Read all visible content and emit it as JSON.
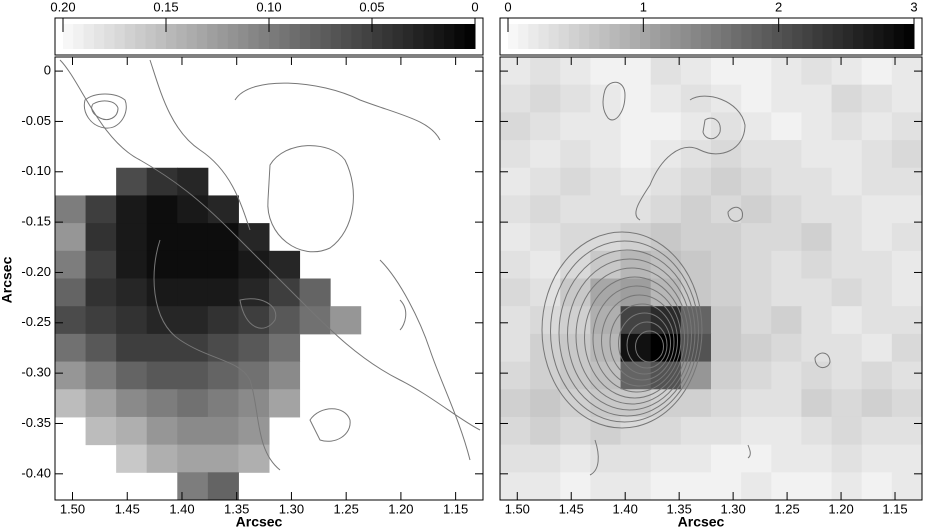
{
  "chart_data": [
    {
      "type": "heatmap",
      "xlabel": "Arcsec",
      "ylabel": "Arcsec",
      "xlim": [
        1.516,
        1.125
      ],
      "ylim": [
        -0.426,
        0.014
      ],
      "xticks": [
        {
          "value": 1.5,
          "label": "1.50"
        },
        1.45,
        {
          "value": 1.4,
          "label": "1.40"
        },
        1.35,
        {
          "value": 1.3,
          "label": "1.30"
        },
        1.25,
        {
          "value": 1.2,
          "label": "1.20"
        },
        1.15
      ],
      "yticks": [
        0,
        -0.05,
        {
          "value": -0.1,
          "label": "-0.10"
        },
        -0.15,
        {
          "value": -0.2,
          "label": "-0.20"
        },
        -0.25,
        {
          "value": -0.3,
          "label": "-0.30"
        },
        -0.35,
        {
          "value": -0.4,
          "label": "-0.40"
        }
      ],
      "show_ytick_labels": true,
      "clim": [
        0.2,
        0
      ],
      "cticks": [
        {
          "value": 0.2,
          "label": "0.20"
        },
        0.15,
        {
          "value": 0.1,
          "label": "0.10"
        },
        0.05,
        0
      ],
      "z": [
        [
          null,
          null,
          null,
          null,
          null,
          null,
          null,
          null,
          null,
          null,
          null,
          null,
          null,
          null
        ],
        [
          null,
          null,
          null,
          null,
          null,
          null,
          null,
          null,
          null,
          null,
          null,
          null,
          null,
          null
        ],
        [
          null,
          null,
          null,
          null,
          null,
          null,
          null,
          null,
          null,
          null,
          null,
          null,
          null,
          null
        ],
        [
          null,
          null,
          null,
          null,
          null,
          null,
          null,
          null,
          null,
          null,
          null,
          null,
          null,
          null
        ],
        [
          null,
          null,
          0.06,
          0.04,
          0.03,
          null,
          null,
          null,
          null,
          null,
          null,
          null,
          null,
          null
        ],
        [
          0.1,
          0.05,
          0.02,
          0.01,
          0.02,
          0.03,
          null,
          null,
          null,
          null,
          null,
          null,
          null,
          null
        ],
        [
          0.12,
          0.04,
          0.02,
          0.01,
          0.01,
          0.01,
          0.03,
          null,
          null,
          null,
          null,
          null,
          null,
          null
        ],
        [
          0.1,
          0.05,
          0.02,
          0.01,
          0.01,
          0.01,
          0.02,
          0.03,
          null,
          null,
          null,
          null,
          null,
          null
        ],
        [
          0.08,
          0.04,
          0.03,
          0.02,
          0.02,
          0.02,
          0.03,
          0.05,
          0.08,
          null,
          null,
          null,
          null,
          null
        ],
        [
          0.06,
          0.05,
          0.04,
          0.03,
          0.03,
          0.04,
          0.05,
          0.07,
          0.09,
          0.12,
          null,
          null,
          null,
          null
        ],
        [
          0.09,
          0.07,
          0.05,
          0.05,
          0.05,
          0.06,
          0.07,
          0.09,
          null,
          null,
          null,
          null,
          null,
          null
        ],
        [
          0.12,
          0.1,
          0.08,
          0.07,
          0.07,
          0.08,
          0.09,
          0.11,
          null,
          null,
          null,
          null,
          null,
          null
        ],
        [
          0.15,
          0.13,
          0.11,
          0.1,
          0.09,
          0.1,
          0.11,
          0.13,
          null,
          null,
          null,
          null,
          null,
          null
        ],
        [
          null,
          0.15,
          0.14,
          0.12,
          0.11,
          0.11,
          0.12,
          null,
          null,
          null,
          null,
          null,
          null,
          null
        ],
        [
          null,
          null,
          0.16,
          0.14,
          0.13,
          0.13,
          0.14,
          null,
          null,
          null,
          null,
          null,
          null,
          null
        ],
        [
          null,
          null,
          null,
          null,
          0.1,
          0.08,
          null,
          null,
          null,
          null,
          null,
          null,
          null,
          null
        ]
      ]
    },
    {
      "type": "heatmap",
      "xlabel": "Arcsec",
      "xlim": [
        1.516,
        1.125
      ],
      "ylim": [
        -0.426,
        0.014
      ],
      "xticks": [
        {
          "value": 1.5,
          "label": "1.50"
        },
        1.45,
        {
          "value": 1.4,
          "label": "1.40"
        },
        1.35,
        {
          "value": 1.3,
          "label": "1.30"
        },
        1.25,
        {
          "value": 1.2,
          "label": "1.20"
        },
        1.15
      ],
      "yticks": [
        0,
        -0.05,
        -0.1,
        -0.15,
        -0.2,
        -0.25,
        -0.3,
        -0.35,
        -0.4
      ],
      "show_ytick_labels": false,
      "clim": [
        0,
        3
      ],
      "cticks": [
        0,
        1,
        2,
        3
      ],
      "z": [
        [
          0.2,
          0.3,
          0.2,
          0.1,
          0.1,
          0.3,
          0.2,
          0.1,
          0.1,
          0.2,
          0.3,
          0.2,
          0.1,
          0.2
        ],
        [
          0.3,
          0.4,
          0.3,
          0.2,
          0.1,
          0.2,
          0.3,
          0.2,
          0.1,
          0.2,
          0.2,
          0.4,
          0.3,
          0.2
        ],
        [
          0.4,
          0.3,
          0.2,
          0.2,
          0.1,
          0.1,
          0.2,
          0.3,
          0.2,
          0.1,
          0.2,
          0.3,
          0.2,
          0.3
        ],
        [
          0.3,
          0.2,
          0.3,
          0.2,
          0.1,
          0.2,
          0.3,
          0.4,
          0.3,
          0.3,
          0.2,
          0.2,
          0.3,
          0.4
        ],
        [
          0.2,
          0.3,
          0.4,
          0.3,
          0.2,
          0.3,
          0.4,
          0.5,
          0.4,
          0.3,
          0.3,
          0.2,
          0.3,
          0.3
        ],
        [
          0.3,
          0.4,
          0.3,
          0.3,
          0.3,
          0.4,
          0.5,
          0.4,
          0.5,
          0.4,
          0.3,
          0.3,
          0.2,
          0.2
        ],
        [
          0.2,
          0.3,
          0.4,
          0.4,
          0.5,
          0.6,
          0.5,
          0.5,
          0.4,
          0.4,
          0.5,
          0.3,
          0.2,
          0.3
        ],
        [
          0.3,
          0.2,
          0.4,
          0.6,
          0.8,
          0.7,
          0.6,
          0.5,
          0.4,
          0.3,
          0.4,
          0.3,
          0.3,
          0.2
        ],
        [
          0.4,
          0.3,
          0.6,
          1.0,
          1.1,
          0.8,
          0.6,
          0.5,
          0.4,
          0.3,
          0.3,
          0.4,
          0.3,
          0.2
        ],
        [
          0.3,
          0.4,
          0.5,
          0.9,
          2.2,
          2.5,
          1.8,
          0.6,
          0.4,
          0.5,
          0.3,
          0.2,
          0.3,
          0.3
        ],
        [
          0.3,
          0.5,
          0.6,
          0.8,
          2.8,
          3.0,
          2.0,
          0.6,
          0.5,
          0.4,
          0.3,
          0.3,
          0.2,
          0.4
        ],
        [
          0.4,
          0.5,
          0.6,
          0.7,
          1.8,
          2.0,
          1.2,
          0.5,
          0.4,
          0.3,
          0.4,
          0.3,
          0.4,
          0.3
        ],
        [
          0.5,
          0.6,
          0.5,
          0.6,
          0.6,
          0.5,
          0.5,
          0.4,
          0.3,
          0.3,
          0.5,
          0.4,
          0.5,
          0.4
        ],
        [
          0.4,
          0.5,
          0.4,
          0.5,
          0.4,
          0.4,
          0.3,
          0.3,
          0.2,
          0.2,
          0.3,
          0.4,
          0.3,
          0.3
        ],
        [
          0.3,
          0.3,
          0.2,
          0.3,
          0.3,
          0.2,
          0.2,
          0.1,
          0.1,
          0.2,
          0.2,
          0.3,
          0.2,
          0.2
        ],
        [
          0.2,
          0.2,
          0.1,
          0.2,
          0.2,
          0.1,
          0.1,
          0.1,
          0.2,
          0.1,
          0.1,
          0.2,
          0.1,
          0.2
        ]
      ]
    }
  ]
}
